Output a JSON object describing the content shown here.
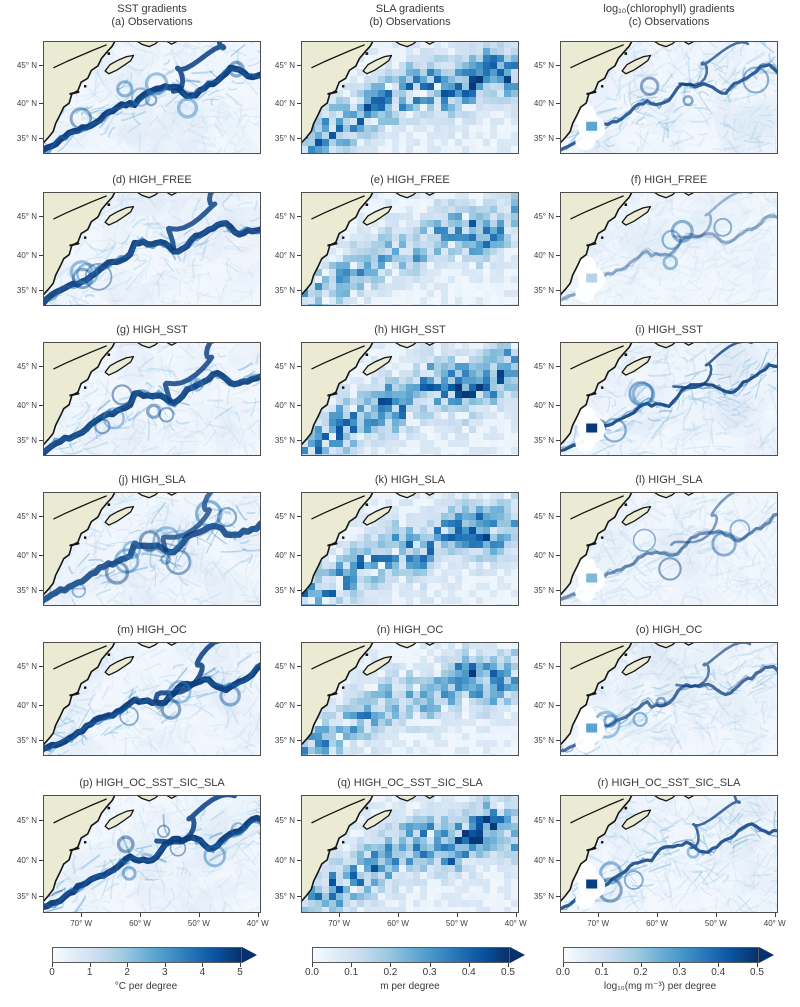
{
  "figure": {
    "columns": [
      {
        "header": "SST gradients",
        "colorbar": {
          "ticks": [
            "0",
            "1",
            "2",
            "3",
            "4",
            "5"
          ],
          "label": "°C per degree"
        }
      },
      {
        "header": "SLA gradients",
        "colorbar": {
          "ticks": [
            "0.0",
            "0.1",
            "0.2",
            "0.3",
            "0.4",
            "0.5"
          ],
          "label": "m per degree"
        }
      },
      {
        "header": "log₁₀(chlorophyll) gradients",
        "colorbar": {
          "ticks": [
            "0.0",
            "0.1",
            "0.2",
            "0.3",
            "0.4",
            "0.5"
          ],
          "label": "log₁₀(mg m⁻³) per degree"
        }
      }
    ],
    "panels": [
      {
        "title": "(a) Observations"
      },
      {
        "title": "(b) Observations"
      },
      {
        "title": "(c) Observations"
      },
      {
        "title": "(d) HIGH_FREE"
      },
      {
        "title": "(e) HIGH_FREE"
      },
      {
        "title": "(f) HIGH_FREE"
      },
      {
        "title": "(g) HIGH_SST"
      },
      {
        "title": "(h) HIGH_SST"
      },
      {
        "title": "(i) HIGH_SST"
      },
      {
        "title": "(j) HIGH_SLA"
      },
      {
        "title": "(k) HIGH_SLA"
      },
      {
        "title": "(l) HIGH_SLA"
      },
      {
        "title": "(m) HIGH_OC"
      },
      {
        "title": "(n) HIGH_OC"
      },
      {
        "title": "(o) HIGH_OC"
      },
      {
        "title": "(p) HIGH_OC_SST_SIC_SLA"
      },
      {
        "title": "(q) HIGH_OC_SST_SIC_SLA"
      },
      {
        "title": "(r) HIGH_OC_SST_SIC_SLA"
      }
    ],
    "lat_ticks": [
      "45° N",
      "40° N",
      "35° N"
    ],
    "lon_ticks": [
      "70° W",
      "60° W",
      "50° W",
      "40° W"
    ],
    "colors": {
      "land": "#ebebd3",
      "coastline": "#151515",
      "colormap_min": "#f7fbff",
      "colormap_max": "#08306b"
    }
  },
  "chart_data": {
    "type": "heatmap",
    "layout": {
      "rows": 6,
      "cols": 3
    },
    "columns": [
      {
        "variable": "SST gradients",
        "colorbar": {
          "min": 0,
          "max": 5,
          "ticks": [
            0,
            1,
            2,
            3,
            4,
            5
          ],
          "units": "°C per degree",
          "extend": "max"
        }
      },
      {
        "variable": "SLA gradients",
        "colorbar": {
          "min": 0.0,
          "max": 0.5,
          "ticks": [
            0.0,
            0.1,
            0.2,
            0.3,
            0.4,
            0.5
          ],
          "units": "m per degree",
          "extend": "max"
        }
      },
      {
        "variable": "log10(chlorophyll) gradients",
        "colorbar": {
          "min": 0.0,
          "max": 0.5,
          "ticks": [
            0.0,
            0.1,
            0.2,
            0.3,
            0.4,
            0.5
          ],
          "units": "log10(mg m-3) per degree",
          "extend": "max"
        }
      }
    ],
    "rows": [
      "Observations",
      "HIGH_FREE",
      "HIGH_SST",
      "HIGH_SLA",
      "HIGH_OC",
      "HIGH_OC_SST_SIC_SLA"
    ],
    "panel_letters": [
      "a",
      "b",
      "c",
      "d",
      "e",
      "f",
      "g",
      "h",
      "i",
      "j",
      "k",
      "l",
      "m",
      "n",
      "o",
      "p",
      "q",
      "r"
    ],
    "axes": {
      "lon_ticks": [
        "70° W",
        "60° W",
        "50° W",
        "40° W"
      ],
      "lat_ticks": [
        "45° N",
        "40° N",
        "35° N"
      ]
    },
    "colormap": "Blues"
  }
}
